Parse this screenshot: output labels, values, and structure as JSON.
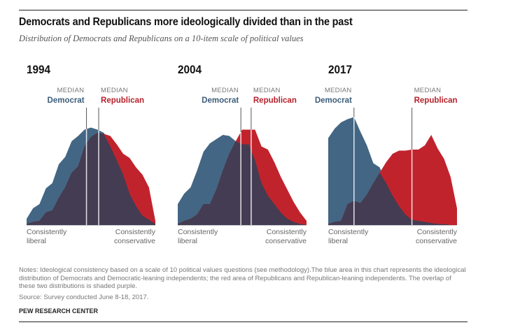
{
  "title": "Democrats and Republicans more ideologically divided than in the past",
  "subtitle": "Distribution of Democrats and Republicans on a 10-item scale of political values",
  "colors": {
    "democrat": "#436684",
    "republican": "#c1232d",
    "overlap": "#443c52",
    "median_line": "#ffffff",
    "median_tick": "#555555"
  },
  "labels": {
    "median": "MEDIAN",
    "democrat": "Democrat",
    "republican": "Republican",
    "left_axis_line1": "Consistently",
    "left_axis_line2": "liberal",
    "right_axis_line1": "Consistently",
    "right_axis_line2": "conservative"
  },
  "notes": "Notes: Ideological consistency based on a scale of 10 political values questions (see methodology).The blue area in this chart represents the ideological distribution of Democrats and Democratic-leaning independents; the red area of Republicans and Republican-leaning independents. The overlap of these two distributions is shaded purple.",
  "source": "Source: Survey conducted June 8-18, 2017.",
  "organization": "PEW RESEARCH CENTER",
  "chart_data": [
    {
      "type": "area",
      "title": "1994",
      "xlabel_left": "Consistently liberal",
      "xlabel_right": "Consistently conservative",
      "x": [
        -10,
        -9,
        -8,
        -7,
        -6,
        -5,
        -4,
        -3,
        -2,
        -1,
        0,
        1,
        2,
        3,
        4,
        5,
        6,
        7,
        8,
        9,
        10
      ],
      "ylim": [
        0,
        100
      ],
      "series": [
        {
          "name": "Democrat",
          "values": [
            6,
            16,
            20,
            35,
            40,
            58,
            65,
            80,
            85,
            91,
            93,
            91,
            88,
            75,
            62,
            48,
            30,
            18,
            9,
            5,
            1
          ]
        },
        {
          "name": "Republican",
          "values": [
            1,
            3,
            4,
            12,
            14,
            26,
            36,
            50,
            56,
            75,
            84,
            88,
            87,
            85,
            77,
            68,
            64,
            55,
            48,
            36,
            4
          ]
        }
      ],
      "median_democrat": -0.7,
      "median_republican": 1.2
    },
    {
      "type": "area",
      "title": "2004",
      "xlabel_left": "Consistently liberal",
      "xlabel_right": "Consistently conservative",
      "x": [
        -10,
        -9,
        -8,
        -7,
        -6,
        -5,
        -4,
        -3,
        -2,
        -1,
        0,
        1,
        2,
        3,
        4,
        5,
        6,
        7,
        8,
        9,
        10
      ],
      "ylim": [
        0,
        100
      ],
      "series": [
        {
          "name": "Democrat",
          "values": [
            20,
            30,
            36,
            52,
            70,
            78,
            82,
            86,
            85,
            80,
            77,
            77,
            62,
            40,
            28,
            20,
            12,
            6,
            3,
            1,
            0
          ]
        },
        {
          "name": "Republican",
          "values": [
            1,
            4,
            6,
            10,
            20,
            20,
            34,
            52,
            68,
            80,
            91,
            91,
            91,
            75,
            72,
            60,
            46,
            34,
            22,
            12,
            4
          ]
        }
      ],
      "median_democrat": -0.2,
      "median_republican": 1.4
    },
    {
      "type": "area",
      "title": "2017",
      "xlabel_left": "Consistently liberal",
      "xlabel_right": "Consistently conservative",
      "x": [
        -10,
        -9,
        -8,
        -7,
        -6,
        -5,
        -4,
        -3,
        -2,
        -1,
        0,
        1,
        2,
        3,
        4,
        5,
        6,
        7,
        8,
        9,
        10
      ],
      "ylim": [
        0,
        100
      ],
      "series": [
        {
          "name": "Democrat",
          "values": [
            83,
            92,
            98,
            101,
            103,
            89,
            76,
            59,
            55,
            40,
            28,
            18,
            10,
            5,
            4,
            3,
            2,
            1,
            1,
            0,
            0
          ]
        },
        {
          "name": "Republican",
          "values": [
            1,
            3,
            4,
            20,
            23,
            21,
            29,
            40,
            50,
            60,
            68,
            71,
            71,
            72,
            72,
            76,
            86,
            73,
            63,
            46,
            16
          ]
        }
      ],
      "median_democrat": -6,
      "median_republican": 3
    }
  ]
}
